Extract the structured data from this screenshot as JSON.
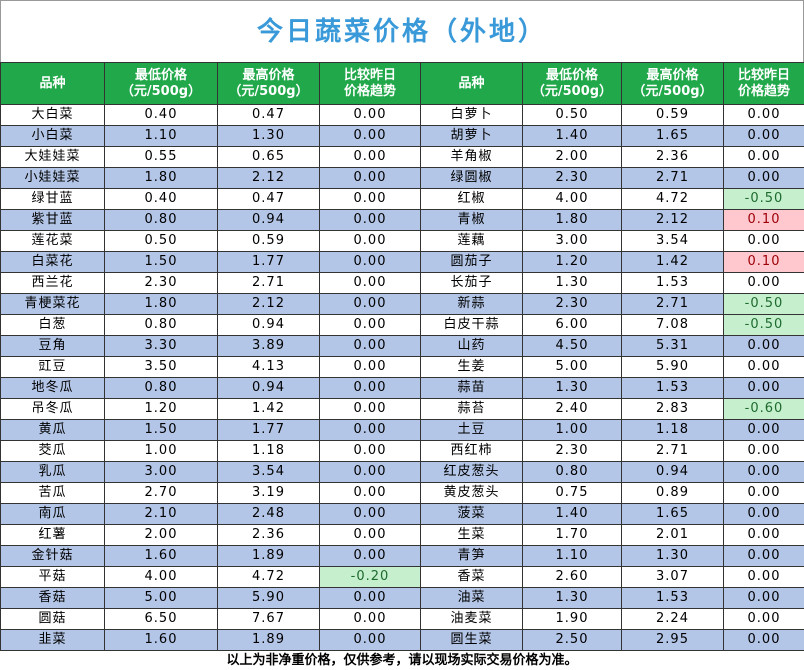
{
  "title": "今日蔬菜价格（外地）",
  "header": [
    [
      "品种"
    ],
    [
      "最低价格",
      "（元/500g）"
    ],
    [
      "最高价格",
      "（元/500g）"
    ],
    [
      "比较昨日",
      "价格趋势"
    ],
    [
      "品种"
    ],
    [
      "最低价格",
      "（元/500g）"
    ],
    [
      "最高价格",
      "（元/500g）"
    ],
    [
      "比较昨日",
      "价格趋势"
    ]
  ],
  "table": {
    "rows": [
      [
        "大白菜",
        "0.40",
        "0.47",
        "0.00",
        "白萝卜",
        "0.50",
        "0.59",
        "0.00"
      ],
      [
        "小白菜",
        "1.10",
        "1.30",
        "0.00",
        "胡萝卜",
        "1.40",
        "1.65",
        "0.00"
      ],
      [
        "大娃娃菜",
        "0.55",
        "0.65",
        "0.00",
        "羊角椒",
        "2.00",
        "2.36",
        "0.00"
      ],
      [
        "小娃娃菜",
        "1.80",
        "2.12",
        "0.00",
        "绿圆椒",
        "2.30",
        "2.71",
        "0.00"
      ],
      [
        "绿甘蓝",
        "0.40",
        "0.47",
        "0.00",
        "红椒",
        "4.00",
        "4.72",
        "-0.50"
      ],
      [
        "紫甘蓝",
        "0.80",
        "0.94",
        "0.00",
        "青椒",
        "1.80",
        "2.12",
        "0.10"
      ],
      [
        "莲花菜",
        "0.50",
        "0.59",
        "0.00",
        "莲藕",
        "3.00",
        "3.54",
        "0.00"
      ],
      [
        "白菜花",
        "1.50",
        "1.77",
        "0.00",
        "圆茄子",
        "1.20",
        "1.42",
        "0.10"
      ],
      [
        "西兰花",
        "2.30",
        "2.71",
        "0.00",
        "长茄子",
        "1.30",
        "1.53",
        "0.00"
      ],
      [
        "青梗菜花",
        "1.80",
        "2.12",
        "0.00",
        "新蒜",
        "2.30",
        "2.71",
        "-0.50"
      ],
      [
        "白葱",
        "0.80",
        "0.94",
        "0.00",
        "白皮干蒜",
        "6.00",
        "7.08",
        "-0.50"
      ],
      [
        "豆角",
        "3.30",
        "3.89",
        "0.00",
        "山药",
        "4.50",
        "5.31",
        "0.00"
      ],
      [
        "豇豆",
        "3.50",
        "4.13",
        "0.00",
        "生姜",
        "5.00",
        "5.90",
        "0.00"
      ],
      [
        "地冬瓜",
        "0.80",
        "0.94",
        "0.00",
        "蒜苗",
        "1.30",
        "1.53",
        "0.00"
      ],
      [
        "吊冬瓜",
        "1.20",
        "1.42",
        "0.00",
        "蒜苔",
        "2.40",
        "2.83",
        "-0.60"
      ],
      [
        "黄瓜",
        "1.50",
        "1.77",
        "0.00",
        "土豆",
        "1.00",
        "1.18",
        "0.00"
      ],
      [
        "茭瓜",
        "1.00",
        "1.18",
        "0.00",
        "西红柿",
        "2.30",
        "2.71",
        "0.00"
      ],
      [
        "乳瓜",
        "3.00",
        "3.54",
        "0.00",
        "红皮葱头",
        "0.80",
        "0.94",
        "0.00"
      ],
      [
        "苦瓜",
        "2.70",
        "3.19",
        "0.00",
        "黄皮葱头",
        "0.75",
        "0.89",
        "0.00"
      ],
      [
        "南瓜",
        "2.10",
        "2.48",
        "0.00",
        "菠菜",
        "1.40",
        "1.65",
        "0.00"
      ],
      [
        "红薯",
        "2.00",
        "2.36",
        "0.00",
        "生菜",
        "1.70",
        "2.01",
        "0.00"
      ],
      [
        "金针菇",
        "1.60",
        "1.89",
        "0.00",
        "青笋",
        "1.10",
        "1.30",
        "0.00"
      ],
      [
        "平菇",
        "4.00",
        "4.72",
        "-0.20",
        "香菜",
        "2.60",
        "3.07",
        "0.00"
      ],
      [
        "香菇",
        "5.00",
        "5.90",
        "0.00",
        "油菜",
        "1.30",
        "1.53",
        "0.00"
      ],
      [
        "圆菇",
        "6.50",
        "7.67",
        "0.00",
        "油麦菜",
        "1.90",
        "2.24",
        "0.00"
      ],
      [
        "韭菜",
        "1.60",
        "1.89",
        "0.00",
        "圆生菜",
        "2.50",
        "2.95",
        "0.00"
      ]
    ]
  },
  "footer": "以上为非净重价格，仅供参考，请以现场实际交易价格为准。"
}
